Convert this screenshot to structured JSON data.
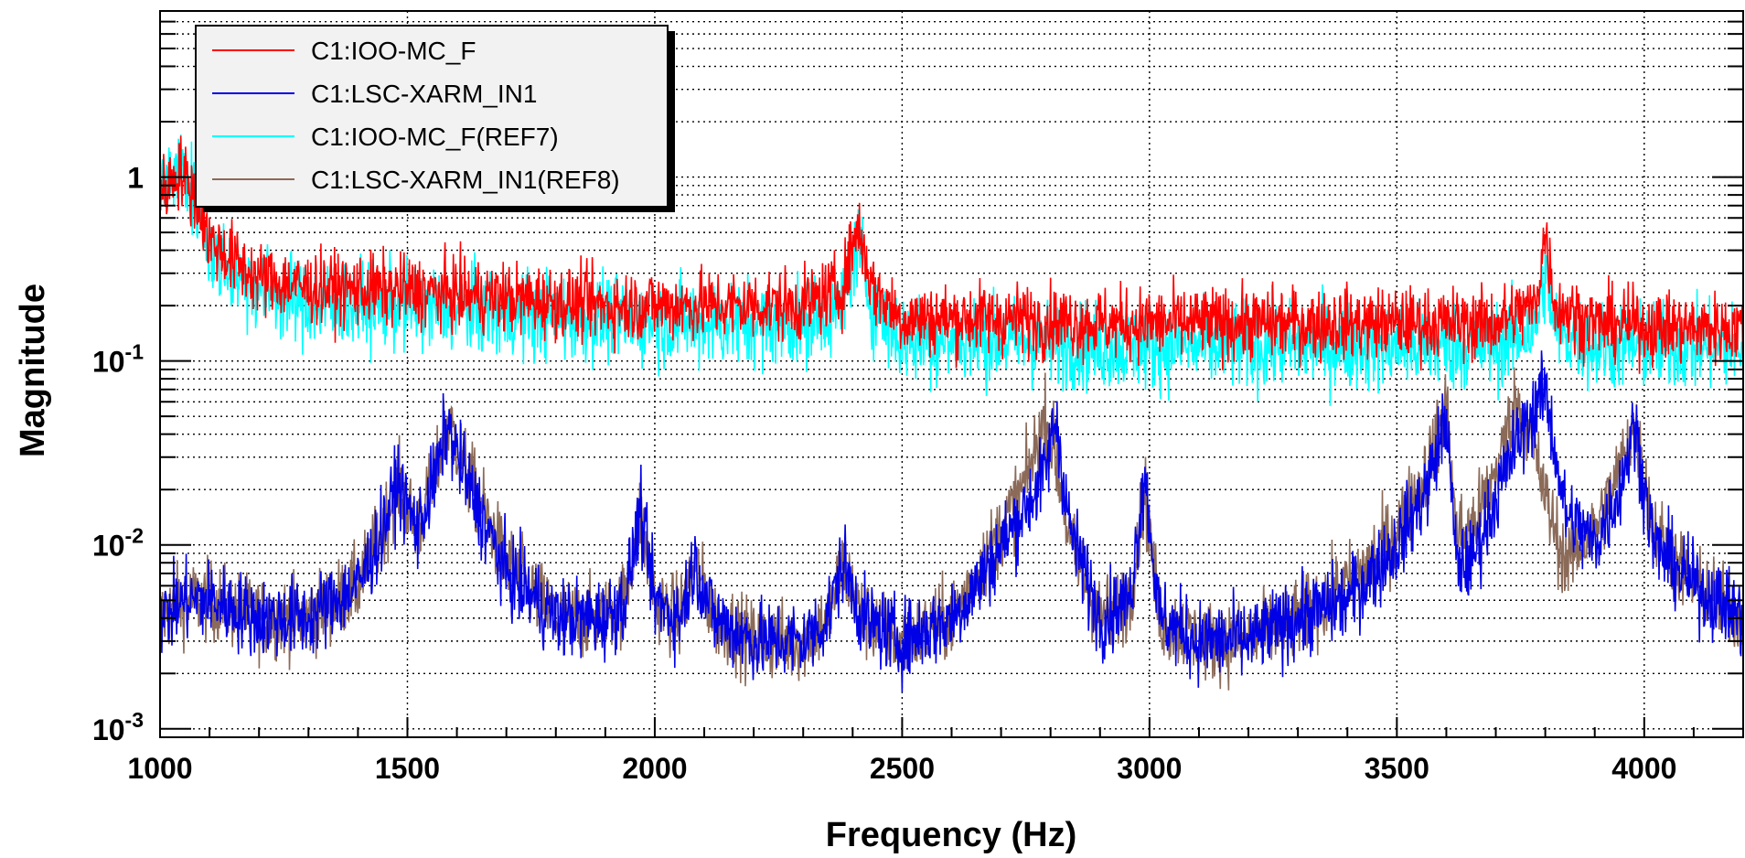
{
  "chart_data": {
    "type": "line",
    "xlabel": "Frequency (Hz)",
    "ylabel": "Magnitude",
    "xlim": [
      1000,
      4200
    ],
    "ylim": [
      0.0009,
      8
    ],
    "yscale": "log",
    "grid": true,
    "legend_position": "top-left",
    "x_ticks": [
      "1000",
      "1500",
      "2000",
      "2500",
      "3000",
      "3500",
      "4000"
    ],
    "x_tick_values": [
      1000,
      1500,
      2000,
      2500,
      3000,
      3500,
      4000
    ],
    "y_ticks": [
      {
        "value": 1,
        "base": "1",
        "exp": ""
      },
      {
        "value": 0.1,
        "base": "10",
        "exp": "-1"
      },
      {
        "value": 0.01,
        "base": "10",
        "exp": "-2"
      },
      {
        "value": 0.001,
        "base": "10",
        "exp": "-3"
      }
    ],
    "series": [
      {
        "name": "C1:LSC-XARM_IN1(REF8)",
        "color": "#8b6a58",
        "noise": 0.5,
        "x": [
          1000,
          1050,
          1100,
          1200,
          1300,
          1400,
          1450,
          1480,
          1520,
          1560,
          1580,
          1620,
          1700,
          1800,
          1900,
          1940,
          1970,
          2000,
          2050,
          2080,
          2120,
          2200,
          2300,
          2350,
          2380,
          2420,
          2500,
          2600,
          2650,
          2700,
          2750,
          2790,
          2810,
          2840,
          2900,
          2960,
          2990,
          3020,
          3100,
          3200,
          3300,
          3400,
          3500,
          3560,
          3600,
          3620,
          3650,
          3700,
          3740,
          3770,
          3800,
          3840,
          3900,
          3950,
          3980,
          4020,
          4100,
          4150,
          4200
        ],
        "y": [
          0.004,
          0.005,
          0.005,
          0.004,
          0.004,
          0.006,
          0.012,
          0.022,
          0.012,
          0.025,
          0.05,
          0.025,
          0.008,
          0.004,
          0.004,
          0.005,
          0.015,
          0.005,
          0.004,
          0.008,
          0.004,
          0.003,
          0.003,
          0.004,
          0.008,
          0.004,
          0.003,
          0.004,
          0.007,
          0.012,
          0.022,
          0.05,
          0.03,
          0.01,
          0.004,
          0.005,
          0.02,
          0.004,
          0.003,
          0.003,
          0.004,
          0.006,
          0.012,
          0.025,
          0.06,
          0.012,
          0.012,
          0.025,
          0.06,
          0.04,
          0.018,
          0.008,
          0.012,
          0.025,
          0.045,
          0.012,
          0.006,
          0.005,
          0.004
        ]
      },
      {
        "name": "C1:LSC-XARM_IN1",
        "color": "#0000e6",
        "noise": 0.5,
        "x": [
          1000,
          1050,
          1100,
          1200,
          1300,
          1400,
          1450,
          1480,
          1520,
          1560,
          1580,
          1620,
          1700,
          1800,
          1900,
          1940,
          1970,
          2000,
          2050,
          2080,
          2120,
          2200,
          2300,
          2350,
          2380,
          2420,
          2500,
          2600,
          2650,
          2700,
          2750,
          2790,
          2810,
          2840,
          2900,
          2960,
          2990,
          3020,
          3100,
          3200,
          3300,
          3400,
          3500,
          3560,
          3600,
          3620,
          3650,
          3700,
          3740,
          3770,
          3800,
          3840,
          3900,
          3950,
          3980,
          4020,
          4100,
          4150,
          4200
        ],
        "y": [
          0.004,
          0.005,
          0.005,
          0.004,
          0.004,
          0.006,
          0.012,
          0.022,
          0.012,
          0.025,
          0.045,
          0.022,
          0.007,
          0.004,
          0.004,
          0.005,
          0.015,
          0.005,
          0.004,
          0.008,
          0.004,
          0.003,
          0.003,
          0.004,
          0.008,
          0.004,
          0.003,
          0.004,
          0.006,
          0.01,
          0.016,
          0.025,
          0.05,
          0.012,
          0.004,
          0.005,
          0.025,
          0.004,
          0.003,
          0.003,
          0.004,
          0.005,
          0.01,
          0.02,
          0.05,
          0.008,
          0.008,
          0.018,
          0.035,
          0.05,
          0.07,
          0.015,
          0.01,
          0.02,
          0.045,
          0.01,
          0.006,
          0.005,
          0.004
        ]
      },
      {
        "name": "C1:IOO-MC_F(REF7)",
        "color": "#00ffff",
        "noise": 0.55,
        "x": [
          1000,
          1040,
          1080,
          1100,
          1150,
          1200,
          1300,
          1500,
          1700,
          1900,
          2100,
          2300,
          2380,
          2410,
          2440,
          2500,
          2700,
          2900,
          3100,
          3300,
          3500,
          3700,
          3780,
          3800,
          3820,
          3900,
          4100,
          4200
        ],
        "y": [
          0.8,
          1.2,
          0.7,
          0.4,
          0.3,
          0.25,
          0.2,
          0.2,
          0.18,
          0.17,
          0.16,
          0.16,
          0.2,
          0.45,
          0.2,
          0.13,
          0.13,
          0.12,
          0.12,
          0.12,
          0.12,
          0.12,
          0.15,
          0.3,
          0.15,
          0.12,
          0.12,
          0.12
        ]
      },
      {
        "name": "C1:IOO-MC_F",
        "color": "#ff0000",
        "noise": 0.45,
        "x": [
          1000,
          1040,
          1080,
          1100,
          1150,
          1200,
          1300,
          1500,
          1700,
          1900,
          2100,
          2300,
          2380,
          2410,
          2440,
          2500,
          2700,
          2900,
          3100,
          3300,
          3500,
          3700,
          3780,
          3800,
          3820,
          3900,
          4100,
          4200
        ],
        "y": [
          0.8,
          1.1,
          0.7,
          0.45,
          0.35,
          0.28,
          0.25,
          0.24,
          0.22,
          0.2,
          0.2,
          0.2,
          0.25,
          0.55,
          0.25,
          0.17,
          0.17,
          0.16,
          0.16,
          0.16,
          0.16,
          0.16,
          0.2,
          0.5,
          0.2,
          0.16,
          0.15,
          0.15
        ]
      }
    ],
    "legend_order": [
      "C1:IOO-MC_F",
      "C1:LSC-XARM_IN1",
      "C1:IOO-MC_F(REF7)",
      "C1:LSC-XARM_IN1(REF8)"
    ]
  }
}
